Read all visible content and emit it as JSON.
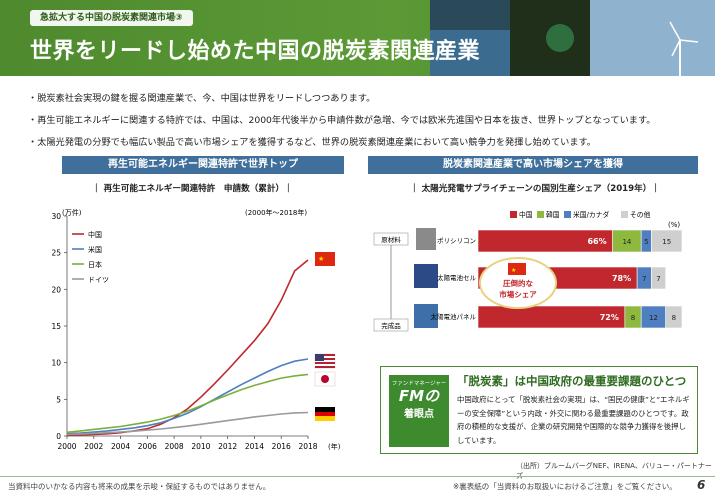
{
  "header": {
    "eyebrow": "急拡大する中国の脱炭素関連市場③",
    "title": "世界をリードし始めた中国の脱炭素関連産業"
  },
  "bullets": [
    "脱炭素社会実現の鍵を握る関連産業で、今、中国は世界をリードしつつあります。",
    "再生可能エネルギーに関連する特許では、中国は、2000年代後半から申請件数が急増、今では欧米先進国や日本を抜き、世界トップとなっています。",
    "太陽光発電の分野でも幅広い製品で高い市場シェアを獲得するなど、世界の脱炭素関連産業において高い競争力を発揮し始めています。"
  ],
  "left_section": {
    "heading": "再生可能エネルギー関連特許で世界トップ",
    "chart_title": "｜ 再生可能エネルギー関連特許　申請数（累計）｜",
    "unit": "(万件)",
    "period": "(2000年〜2018年)",
    "x_unit": "(年)"
  },
  "right_section": {
    "heading": "脱炭素関連産業で高い市場シェアを獲得",
    "chart_title": "｜ 太陽光発電サプライチェーンの国別生産シェア（2019年）｜",
    "pct": "(%)",
    "stage_top": "原材料",
    "stage_bottom": "完成品",
    "callout": [
      "圧倒的な",
      "市場シェア"
    ]
  },
  "chart_data": [
    {
      "type": "line",
      "title": "再生可能エネルギー関連特許　申請数（累計）",
      "ylabel": "(万件)",
      "xlabel": "(年)",
      "ylim": [
        0,
        30
      ],
      "yticks": [
        0,
        5,
        10,
        15,
        20,
        25,
        30
      ],
      "xticks": [
        2000,
        2002,
        2004,
        2006,
        2008,
        2010,
        2012,
        2014,
        2016,
        2018
      ],
      "x": [
        2000,
        2001,
        2002,
        2003,
        2004,
        2005,
        2006,
        2007,
        2008,
        2009,
        2010,
        2011,
        2012,
        2013,
        2014,
        2015,
        2016,
        2017,
        2018
      ],
      "series": [
        {
          "name": "中国",
          "color": "#c0282d",
          "values": [
            0.1,
            0.15,
            0.2,
            0.3,
            0.45,
            0.7,
            1.0,
            1.6,
            2.5,
            3.7,
            5.3,
            7.1,
            9.0,
            11.0,
            13.0,
            15.3,
            18.5,
            22.5,
            24.0
          ]
        },
        {
          "name": "米国",
          "color": "#4f7fc0",
          "values": [
            0.3,
            0.4,
            0.55,
            0.7,
            0.9,
            1.1,
            1.4,
            1.8,
            2.4,
            3.1,
            4.0,
            5.0,
            6.0,
            7.0,
            7.9,
            8.8,
            9.6,
            10.2,
            10.5
          ]
        },
        {
          "name": "日本",
          "color": "#7ab03a",
          "values": [
            0.5,
            0.7,
            0.9,
            1.1,
            1.3,
            1.6,
            1.9,
            2.3,
            2.8,
            3.4,
            4.1,
            4.9,
            5.6,
            6.3,
            6.9,
            7.4,
            7.9,
            8.2,
            8.4
          ]
        },
        {
          "name": "ドイツ",
          "color": "#9a9a9a",
          "values": [
            0.2,
            0.28,
            0.36,
            0.45,
            0.55,
            0.66,
            0.8,
            0.95,
            1.15,
            1.35,
            1.6,
            1.85,
            2.1,
            2.35,
            2.6,
            2.8,
            3.0,
            3.15,
            3.2
          ]
        }
      ]
    },
    {
      "type": "bar",
      "title": "太陽光発電サプライチェーンの国別生産シェア（2019年）",
      "stacked": true,
      "categories": [
        "ポリシリコン",
        "太陽電池セル",
        "太陽電池パネル"
      ],
      "series": [
        {
          "name": "中国",
          "color": "#c0282d",
          "values": [
            66,
            78,
            72
          ]
        },
        {
          "name": "韓国",
          "color": "#8cb93e",
          "values": [
            14,
            0,
            8
          ]
        },
        {
          "name": "米国/カナダ",
          "color": "#4f7fc0",
          "values": [
            5,
            7,
            12
          ]
        },
        {
          "name": "その他",
          "color": "#cfcfcf",
          "values": [
            15,
            7,
            8
          ]
        }
      ]
    }
  ],
  "fm": {
    "badge_top": "ファンドマネージャー",
    "badge_mid": "FMの",
    "badge_bottom": "着眼点",
    "title": "「脱炭素」は中国政府の最重要課題のひとつ",
    "text": "中国政府にとって「脱炭素社会の実現」は、“国民の健康”と“エネルギーの安全保障”という内政・外交に関わる最重要課題のひとつです。政府の積極的な支援が、企業の研究開発や国際的な競争力獲得を後押ししています。"
  },
  "source": "（出所）ブルームバーグNEF、IRENA、バリュー・パートナーズ",
  "footer": {
    "left": "当資料中のいかなる内容も将来の成果を示唆・保証するものではありません。",
    "right": "※裏表紙の「当資料のお取扱いにおけるご注意」をご覧ください。",
    "page": "6"
  }
}
